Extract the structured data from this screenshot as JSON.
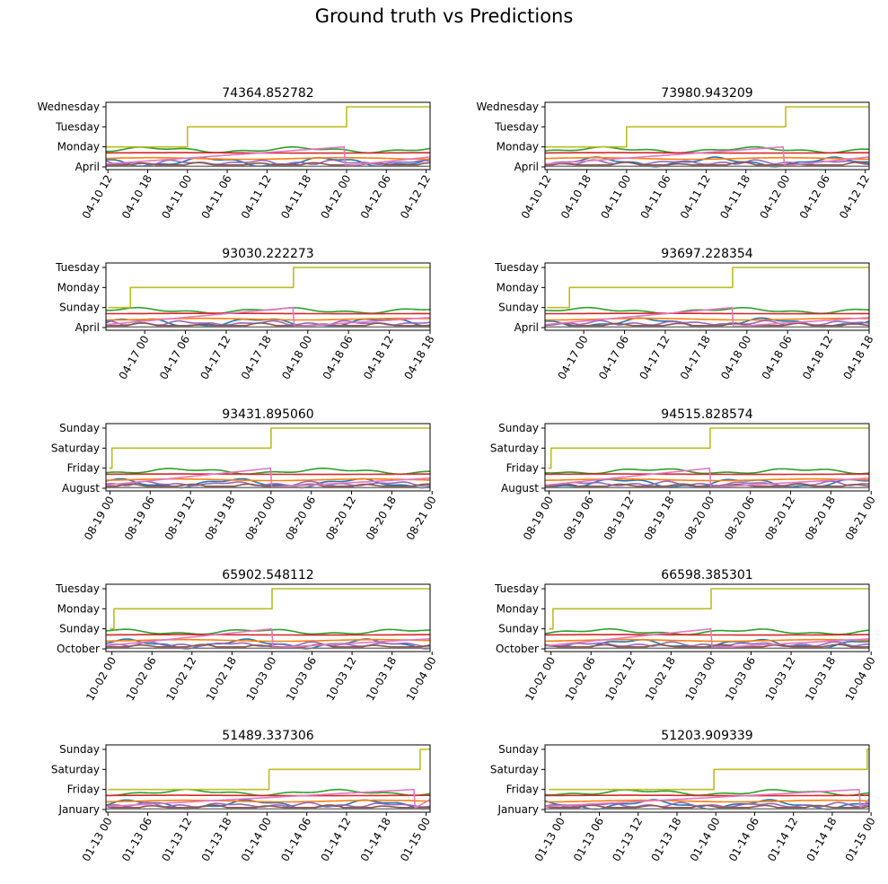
{
  "figure": {
    "title": "Ground truth vs Predictions"
  },
  "colors": [
    "#1f77b4",
    "#ff7f0e",
    "#2ca02c",
    "#d62728",
    "#9467bd",
    "#8c564b",
    "#e377c2",
    "#7f7f7f",
    "#bcbd22"
  ],
  "chart_data": [
    {
      "type": "line",
      "title": "74364.852782",
      "ytick_labels": [
        "April",
        "Monday",
        "Tuesday",
        "Wednesday"
      ],
      "ylim": [
        0,
        3
      ],
      "xtick_labels": [
        "04-10 12",
        "04-10 18",
        "04-11 00",
        "04-11 06",
        "04-11 12",
        "04-11 18",
        "04-12 00",
        "04-12 06",
        "04-12 12"
      ],
      "xlim": [
        -0.05,
        8.1
      ],
      "step_times": [
        -0.05,
        2.0,
        6.0
      ],
      "step_levels": [
        1.0,
        2.0,
        3.0
      ],
      "sawtooth_end": 5.95,
      "seed": 1
    },
    {
      "type": "line",
      "title": "73980.943209",
      "ytick_labels": [
        "April",
        "Monday",
        "Tuesday",
        "Wednesday"
      ],
      "ylim": [
        0,
        3
      ],
      "xtick_labels": [
        "04-10 12",
        "04-10 18",
        "04-11 00",
        "04-11 06",
        "04-11 12",
        "04-11 18",
        "04-12 00",
        "04-12 06",
        "04-12 12"
      ],
      "xlim": [
        -0.05,
        8.1
      ],
      "step_times": [
        -0.05,
        2.0,
        6.0
      ],
      "step_levels": [
        1.0,
        2.0,
        3.0
      ],
      "sawtooth_end": 5.95,
      "seed": 2
    },
    {
      "type": "line",
      "title": "93030.222273",
      "ytick_labels": [
        "April",
        "Sunday",
        "Monday",
        "Tuesday"
      ],
      "ylim": [
        0,
        3
      ],
      "xtick_labels": [
        "04-17 00",
        "04-17 06",
        "04-17 12",
        "04-17 18",
        "04-18 00",
        "04-18 06",
        "04-18 12",
        "04-18 18"
      ],
      "xlim": [
        -0.95,
        7.0
      ],
      "step_times": [
        -0.9,
        -0.35,
        3.65
      ],
      "step_levels": [
        1.0,
        2.0,
        3.0
      ],
      "sawtooth_end": 3.65,
      "seed": 3
    },
    {
      "type": "line",
      "title": "93697.228354",
      "ytick_labels": [
        "April",
        "Sunday",
        "Monday",
        "Tuesday"
      ],
      "ylim": [
        0,
        3
      ],
      "xtick_labels": [
        "04-17 00",
        "04-17 06",
        "04-17 12",
        "04-17 18",
        "04-18 00",
        "04-18 06",
        "04-18 12",
        "04-18 18"
      ],
      "xlim": [
        -0.95,
        7.0
      ],
      "step_times": [
        -0.9,
        -0.35,
        3.65
      ],
      "step_levels": [
        1.0,
        2.0,
        3.0
      ],
      "sawtooth_end": 3.65,
      "seed": 4
    },
    {
      "type": "line",
      "title": "93431.895060",
      "ytick_labels": [
        "August",
        "Friday",
        "Saturday",
        "Sunday"
      ],
      "ylim": [
        0,
        3
      ],
      "xtick_labels": [
        "08-19 00",
        "08-19 06",
        "08-19 12",
        "08-19 18",
        "08-20 00",
        "08-20 06",
        "08-20 12",
        "08-20 18",
        "08-21 00"
      ],
      "xlim": [
        -0.1,
        7.95
      ],
      "step_times": [
        -0.02,
        0.05,
        4.0
      ],
      "step_levels": [
        1.0,
        2.0,
        3.0
      ],
      "sawtooth_end": 4.0,
      "seed": 5
    },
    {
      "type": "line",
      "title": "94515.828574",
      "ytick_labels": [
        "August",
        "Friday",
        "Saturday",
        "Sunday"
      ],
      "ylim": [
        0,
        3
      ],
      "xtick_labels": [
        "08-19 00",
        "08-19 06",
        "08-19 12",
        "08-19 18",
        "08-20 00",
        "08-20 06",
        "08-20 12",
        "08-20 18",
        "08-21 00"
      ],
      "xlim": [
        -0.1,
        7.95
      ],
      "step_times": [
        -0.02,
        0.05,
        4.0
      ],
      "step_levels": [
        1.0,
        2.0,
        3.0
      ],
      "sawtooth_end": 4.0,
      "seed": 6
    },
    {
      "type": "line",
      "title": "65902.548112",
      "ytick_labels": [
        "October",
        "Sunday",
        "Monday",
        "Tuesday"
      ],
      "ylim": [
        0,
        3
      ],
      "xtick_labels": [
        "10-02 00",
        "10-02 06",
        "10-02 12",
        "10-02 18",
        "10-03 00",
        "10-03 06",
        "10-03 12",
        "10-03 18",
        "10-04 00"
      ],
      "xlim": [
        -0.15,
        7.95
      ],
      "step_times": [
        -0.05,
        0.05,
        4.0
      ],
      "step_levels": [
        1.0,
        2.0,
        3.0
      ],
      "sawtooth_end": 4.0,
      "seed": 7
    },
    {
      "type": "line",
      "title": "66598.385301",
      "ytick_labels": [
        "October",
        "Sunday",
        "Monday",
        "Tuesday"
      ],
      "ylim": [
        0,
        3
      ],
      "xtick_labels": [
        "10-02 00",
        "10-02 06",
        "10-02 12",
        "10-02 18",
        "10-03 00",
        "10-03 06",
        "10-03 12",
        "10-03 18",
        "10-04 00"
      ],
      "xlim": [
        -0.15,
        7.95
      ],
      "step_times": [
        -0.05,
        0.05,
        4.0
      ],
      "step_levels": [
        1.0,
        2.0,
        3.0
      ],
      "sawtooth_end": 4.0,
      "seed": 8
    },
    {
      "type": "line",
      "title": "51489.337306",
      "ytick_labels": [
        "January",
        "Friday",
        "Saturday",
        "Sunday"
      ],
      "ylim": [
        0,
        3
      ],
      "xtick_labels": [
        "01-13 00",
        "01-13 06",
        "01-13 12",
        "01-13 18",
        "01-14 00",
        "01-14 06",
        "01-14 12",
        "01-14 18",
        "01-15 00"
      ],
      "xlim": [
        -0.05,
        8.1
      ],
      "step_times": [
        0.0,
        4.05,
        7.85
      ],
      "step_levels": [
        1.0,
        2.0,
        3.0
      ],
      "sawtooth_end": 7.7,
      "seed": 9
    },
    {
      "type": "line",
      "title": "51203.909339",
      "ytick_labels": [
        "January",
        "Friday",
        "Saturday",
        "Sunday"
      ],
      "ylim": [
        0,
        3
      ],
      "xtick_labels": [
        "01-13 00",
        "01-13 06",
        "01-13 12",
        "01-13 18",
        "01-14 00",
        "01-14 06",
        "01-14 12",
        "01-14 18",
        "01-15 00"
      ],
      "xlim": [
        -0.4,
        7.95
      ],
      "step_times": [
        -0.3,
        3.95,
        7.9
      ],
      "step_levels": [
        1.0,
        2.0,
        3.0
      ],
      "sawtooth_end": 7.7,
      "seed": 10
    }
  ]
}
